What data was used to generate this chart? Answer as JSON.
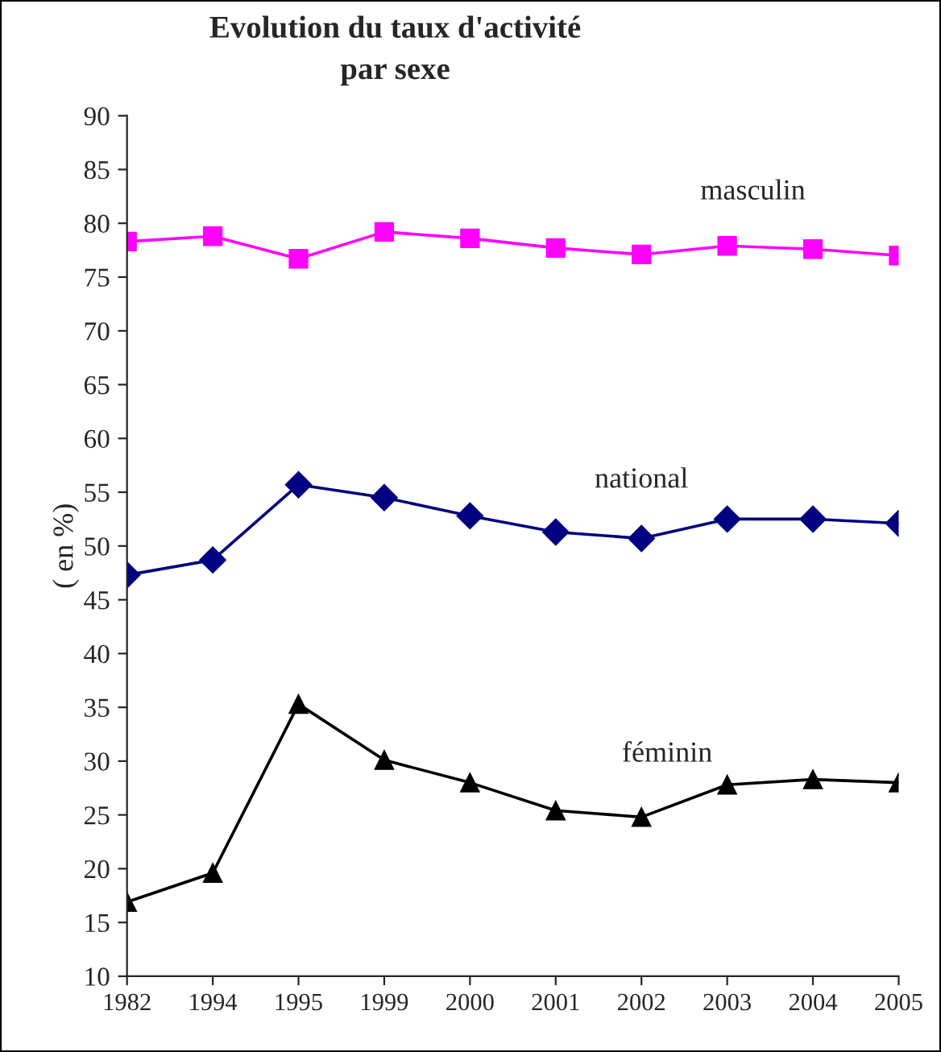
{
  "chart_data": {
    "type": "line",
    "title": "Evolution du taux d'activité\npar sexe",
    "ylabel": "( en %)",
    "categories": [
      "1982",
      "1994",
      "1995",
      "1999",
      "2000",
      "2001",
      "2002",
      "2003",
      "2004",
      "2005"
    ],
    "ylim": [
      10,
      90
    ],
    "yticks": [
      10,
      15,
      20,
      25,
      30,
      35,
      40,
      45,
      50,
      55,
      60,
      65,
      70,
      75,
      80,
      85,
      90
    ],
    "grid": false,
    "legend": false,
    "series": [
      {
        "name": "masculin",
        "color": "#ff00ff",
        "marker": "square",
        "values": [
          78.3,
          78.8,
          76.7,
          79.2,
          78.6,
          77.7,
          77.1,
          77.9,
          77.6,
          77.0
        ]
      },
      {
        "name": "national",
        "color": "#000080",
        "marker": "diamond",
        "values": [
          47.3,
          48.7,
          55.7,
          54.5,
          52.8,
          51.3,
          50.7,
          52.5,
          52.5,
          52.1
        ]
      },
      {
        "name": "féminin",
        "color": "#000000",
        "marker": "triangle",
        "values": [
          16.9,
          19.6,
          35.3,
          30.1,
          28.0,
          25.4,
          24.8,
          27.8,
          28.3,
          28.0
        ]
      }
    ]
  }
}
